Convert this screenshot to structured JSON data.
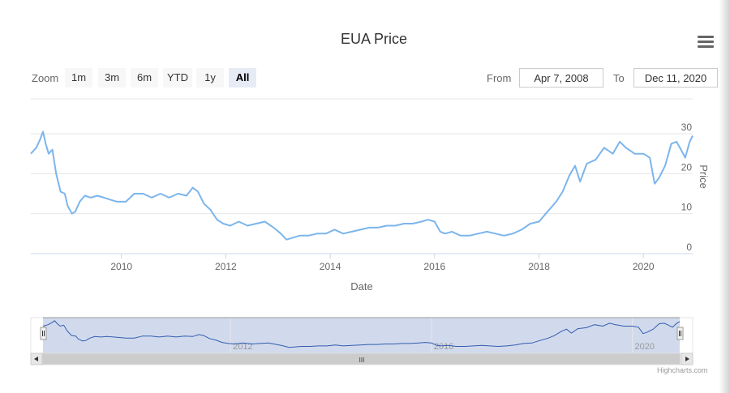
{
  "chart_data": {
    "type": "line",
    "title": "EUA Price",
    "xlabel": "Date",
    "ylabel": "Price",
    "x_ticks": [
      "2010",
      "2012",
      "2014",
      "2016",
      "2018",
      "2020"
    ],
    "y_ticks": [
      "0",
      "10",
      "20",
      "30"
    ],
    "ylim": [
      0,
      32
    ],
    "xlim": [
      "2008-04-07",
      "2020-12-11"
    ],
    "grid": true,
    "navigator_ticks": [
      "2012",
      "2016",
      "2020"
    ],
    "series": [
      {
        "color": "#7cb5ec",
        "x": [
          "2008-04-07",
          "2008-05-15",
          "2008-06-10",
          "2008-07-01",
          "2008-07-20",
          "2008-08-10",
          "2008-09-05",
          "2008-10-01",
          "2008-11-01",
          "2008-12-01",
          "2008-12-20",
          "2009-01-20",
          "2009-02-12",
          "2009-03-15",
          "2009-04-20",
          "2009-06-01",
          "2009-07-15",
          "2009-09-01",
          "2009-10-15",
          "2009-12-01",
          "2010-02-01",
          "2010-04-01",
          "2010-06-01",
          "2010-08-01",
          "2010-10-01",
          "2010-12-01",
          "2011-02-01",
          "2011-04-01",
          "2011-05-15",
          "2011-06-20",
          "2011-08-01",
          "2011-09-15",
          "2011-11-01",
          "2011-12-15",
          "2012-02-01",
          "2012-04-01",
          "2012-06-01",
          "2012-08-01",
          "2012-10-01",
          "2012-12-01",
          "2013-01-20",
          "2013-03-01",
          "2013-04-15",
          "2013-06-01",
          "2013-08-01",
          "2013-10-01",
          "2013-12-01",
          "2014-02-01",
          "2014-04-01",
          "2014-06-01",
          "2014-08-01",
          "2014-10-01",
          "2014-12-01",
          "2015-02-01",
          "2015-04-01",
          "2015-06-01",
          "2015-08-01",
          "2015-10-01",
          "2015-11-15",
          "2016-01-01",
          "2016-02-10",
          "2016-03-15",
          "2016-05-01",
          "2016-07-01",
          "2016-09-01",
          "2016-11-01",
          "2017-01-01",
          "2017-03-01",
          "2017-05-01",
          "2017-07-01",
          "2017-09-01",
          "2017-11-01",
          "2018-01-01",
          "2018-03-01",
          "2018-05-01",
          "2018-06-15",
          "2018-08-01",
          "2018-09-10",
          "2018-10-15",
          "2018-12-01",
          "2019-02-01",
          "2019-04-01",
          "2019-06-01",
          "2019-07-20",
          "2019-09-01",
          "2019-11-01",
          "2020-01-01",
          "2020-02-15",
          "2020-03-20",
          "2020-04-20",
          "2020-06-01",
          "2020-07-15",
          "2020-08-20",
          "2020-09-20",
          "2020-10-20",
          "2020-11-20",
          "2020-12-11"
        ],
        "values": [
          25.0,
          26.5,
          28.5,
          30.5,
          27.5,
          25.0,
          26.0,
          20.0,
          15.5,
          15.0,
          12.0,
          10.0,
          10.5,
          13.0,
          14.5,
          14.0,
          14.5,
          14.0,
          13.5,
          13.0,
          13.0,
          15.0,
          15.0,
          14.0,
          15.0,
          14.0,
          15.0,
          14.5,
          16.5,
          15.5,
          12.5,
          11.0,
          8.5,
          7.5,
          7.0,
          8.0,
          7.0,
          7.5,
          8.0,
          6.5,
          5.0,
          3.5,
          4.0,
          4.5,
          4.5,
          5.0,
          5.0,
          6.0,
          5.0,
          5.5,
          6.0,
          6.5,
          6.5,
          7.0,
          7.0,
          7.5,
          7.5,
          8.0,
          8.5,
          8.0,
          5.5,
          5.0,
          5.5,
          4.5,
          4.5,
          5.0,
          5.5,
          5.0,
          4.5,
          5.0,
          6.0,
          7.5,
          8.0,
          10.5,
          13.0,
          15.5,
          19.5,
          22.0,
          18.0,
          22.5,
          23.5,
          26.5,
          25.0,
          28.0,
          26.5,
          25.0,
          25.0,
          24.0,
          17.5,
          19.0,
          22.0,
          27.5,
          28.0,
          26.0,
          24.0,
          28.0,
          29.5
        ]
      }
    ]
  },
  "zoom": {
    "label": "Zoom",
    "buttons": [
      "1m",
      "3m",
      "6m",
      "YTD",
      "1y",
      "All"
    ],
    "active": "All"
  },
  "range": {
    "from_label": "From",
    "from_value": "Apr 7, 2008",
    "to_label": "To",
    "to_value": "Dec 11, 2020"
  },
  "credits": "Highcharts.com",
  "scrollbar_grip": "III"
}
